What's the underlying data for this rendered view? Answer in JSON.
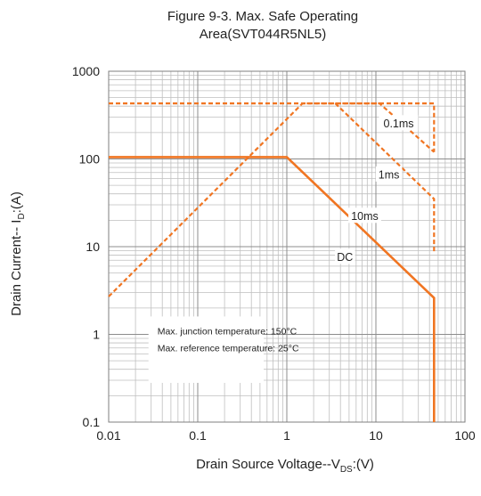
{
  "chart_data": {
    "type": "line",
    "title_line1": "Figure 9-3. Max. Safe Operating",
    "title_line2": "Area(SVT044R5NL5)",
    "xlabel": {
      "prefix": "Drain Source Voltage--V",
      "sub": "DS",
      "suffix": ":(V)"
    },
    "ylabel": {
      "prefix": "Drain Current-- I",
      "sub": "D",
      "suffix": ":(A)"
    },
    "x_scale": "log",
    "y_scale": "log",
    "xlim": [
      0.01,
      100
    ],
    "ylim": [
      0.1,
      1000
    ],
    "x_ticks": [
      "0.01",
      "0.1",
      "1",
      "10",
      "100"
    ],
    "y_ticks": [
      "0.1",
      "1",
      "10",
      "100",
      "1000"
    ],
    "grid": true,
    "series": [
      {
        "name": "0.1ms",
        "style": "dashed",
        "points": [
          [
            0.01,
            430
          ],
          [
            45,
            430
          ],
          [
            45,
            120
          ]
        ]
      },
      {
        "name": "1ms",
        "style": "dashed",
        "points": [
          [
            0.01,
            2.7
          ],
          [
            1.5,
            430
          ],
          [
            11,
            430
          ],
          [
            45,
            120
          ]
        ]
      },
      {
        "name": "10ms",
        "style": "dashed",
        "points": [
          [
            3.5,
            430
          ],
          [
            45,
            35
          ],
          [
            45,
            8.5
          ]
        ]
      },
      {
        "name": "DC",
        "style": "solid",
        "points": [
          [
            0.01,
            105
          ],
          [
            1.0,
            105
          ],
          [
            45,
            2.6
          ],
          [
            45,
            0.1
          ]
        ]
      }
    ],
    "series_labels": [
      {
        "text": "0.1ms",
        "x": 18,
        "y": 250
      },
      {
        "text": "1ms",
        "x": 14,
        "y": 65
      },
      {
        "text": "10ms",
        "x": 7.5,
        "y": 22
      },
      {
        "text": "DC",
        "x": 4.5,
        "y": 7.5
      }
    ],
    "annotations": [
      "Max. junction temperature: 150°C",
      "Max. reference temperature: 25°C"
    ],
    "colors": {
      "curve": "#F07522",
      "grid": "#bfbfbf",
      "axis": "#7f7f7f"
    }
  }
}
